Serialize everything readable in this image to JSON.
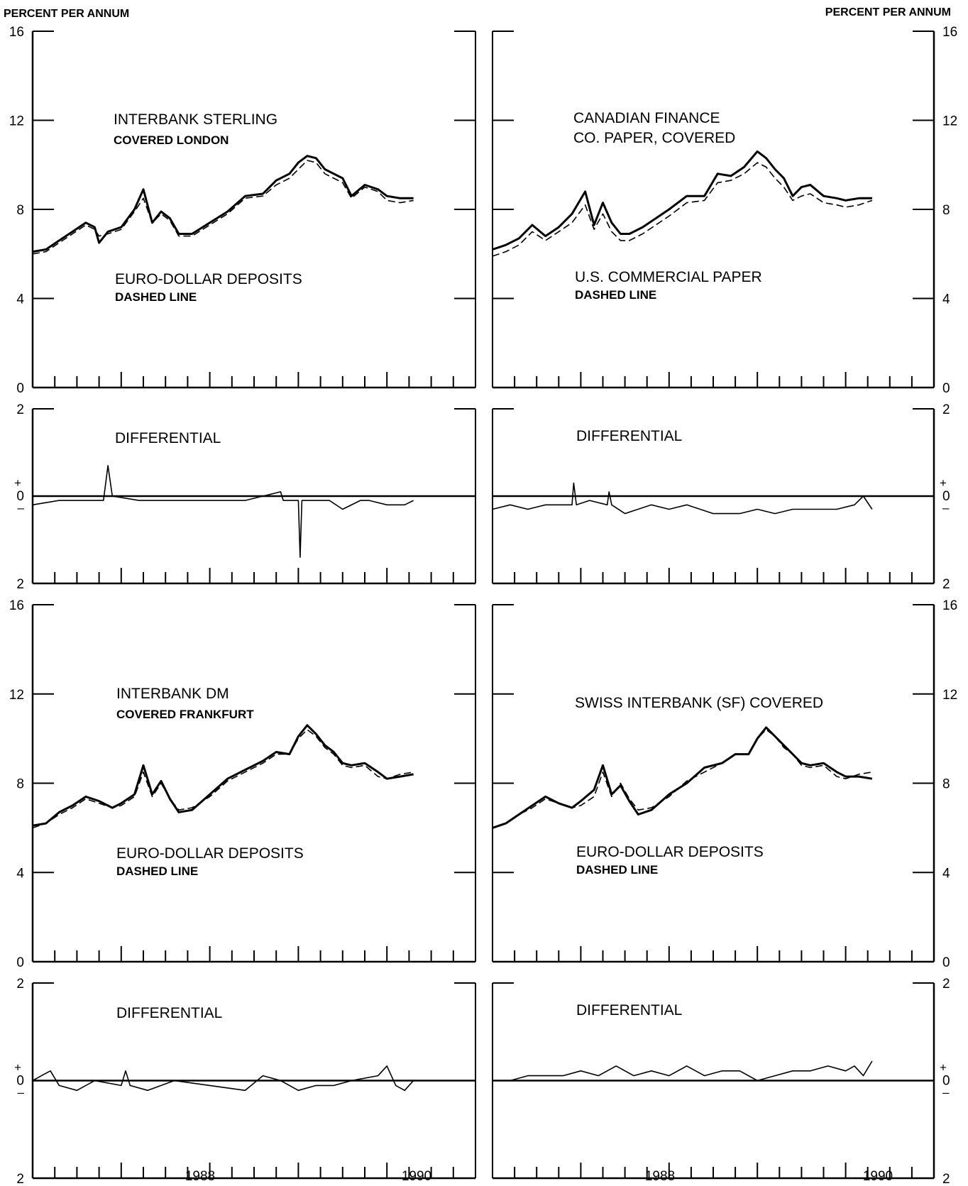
{
  "figure": {
    "left_unit": "PERCENT PER ANNUM",
    "right_unit": "PERCENT PER ANNUM",
    "level_ticks": [
      "0",
      "4",
      "8",
      "12",
      "16"
    ],
    "diff_ticks": [
      "2",
      "0",
      "2"
    ],
    "plus_sign": "+",
    "minus_sign": "–",
    "x_years": [
      "1988",
      "1990"
    ],
    "line_color": "#000000"
  },
  "chart_data": [
    {
      "type": "line",
      "id": "sterling",
      "title": "INTERBANK STERLING",
      "subtitle": "COVERED LONDON",
      "dashed_label": "EURO-DOLLAR DEPOSITS",
      "dashed_sub": "DASHED LINE",
      "ylim": [
        0,
        16
      ],
      "x": [
        1986.0,
        1986.15,
        1986.3,
        1986.45,
        1986.6,
        1986.7,
        1986.75,
        1986.85,
        1987.0,
        1987.15,
        1987.25,
        1987.35,
        1987.45,
        1987.55,
        1987.65,
        1987.8,
        1988.0,
        1988.2,
        1988.4,
        1988.6,
        1988.75,
        1988.9,
        1989.0,
        1989.1,
        1989.2,
        1989.3,
        1989.4,
        1989.5,
        1989.6,
        1989.75,
        1989.9,
        1990.0,
        1990.15,
        1990.3
      ],
      "series": [
        {
          "name": "INTERBANK STERLING",
          "values": [
            6.1,
            6.2,
            6.6,
            7.0,
            7.4,
            7.2,
            6.5,
            7.0,
            7.2,
            8.0,
            8.9,
            7.4,
            7.9,
            7.6,
            6.9,
            6.9,
            7.4,
            7.9,
            8.6,
            8.7,
            9.3,
            9.6,
            10.1,
            10.4,
            10.3,
            9.8,
            9.6,
            9.4,
            8.6,
            9.1,
            8.9,
            8.6,
            8.5,
            8.5
          ],
          "style": "solid"
        },
        {
          "name": "EURO-DOLLAR DEPOSITS",
          "values": [
            6.0,
            6.1,
            6.5,
            6.9,
            7.3,
            7.1,
            6.8,
            6.9,
            7.1,
            7.9,
            8.5,
            7.4,
            7.8,
            7.5,
            6.8,
            6.8,
            7.3,
            7.8,
            8.5,
            8.6,
            9.1,
            9.4,
            9.8,
            10.2,
            10.1,
            9.6,
            9.4,
            9.2,
            8.5,
            9.0,
            8.8,
            8.4,
            8.3,
            8.4
          ],
          "style": "dashed"
        }
      ]
    },
    {
      "type": "line",
      "id": "sterling-diff",
      "title": "DIFFERENTIAL",
      "ylim": [
        -2,
        2
      ],
      "x": [
        1986.0,
        1986.3,
        1986.6,
        1986.8,
        1986.85,
        1986.9,
        1987.2,
        1987.6,
        1988.0,
        1988.4,
        1988.8,
        1988.83,
        1988.95,
        1989.0,
        1989.02,
        1989.04,
        1989.2,
        1989.35,
        1989.5,
        1989.7,
        1989.8,
        1990.0,
        1990.2,
        1990.3
      ],
      "series": [
        {
          "name": "DIFFERENTIAL",
          "values": [
            -0.2,
            -0.1,
            -0.1,
            -0.1,
            0.7,
            0.0,
            -0.1,
            -0.1,
            -0.1,
            -0.1,
            0.1,
            -0.1,
            -0.1,
            -0.1,
            -1.4,
            -0.1,
            -0.1,
            -0.1,
            -0.3,
            -0.1,
            -0.1,
            -0.2,
            -0.2,
            -0.1
          ],
          "style": "solid"
        }
      ]
    },
    {
      "type": "line",
      "id": "dm",
      "title": "INTERBANK DM",
      "subtitle": "COVERED FRANKFURT",
      "dashed_label": "EURO-DOLLAR DEPOSITS",
      "dashed_sub": "DASHED LINE",
      "ylim": [
        0,
        16
      ],
      "x": [
        1986.0,
        1986.15,
        1986.3,
        1986.45,
        1986.6,
        1986.75,
        1986.9,
        1987.0,
        1987.15,
        1987.25,
        1987.35,
        1987.45,
        1987.55,
        1987.65,
        1987.8,
        1988.0,
        1988.2,
        1988.4,
        1988.6,
        1988.75,
        1988.9,
        1989.0,
        1989.1,
        1989.2,
        1989.3,
        1989.4,
        1989.5,
        1989.6,
        1989.75,
        1989.9,
        1990.0,
        1990.15,
        1990.3
      ],
      "series": [
        {
          "name": "INTERBANK DM",
          "values": [
            6.1,
            6.2,
            6.7,
            7.0,
            7.4,
            7.2,
            6.9,
            7.1,
            7.5,
            8.8,
            7.5,
            8.1,
            7.3,
            6.7,
            6.8,
            7.5,
            8.2,
            8.6,
            9.0,
            9.4,
            9.3,
            10.1,
            10.6,
            10.2,
            9.7,
            9.4,
            8.9,
            8.8,
            8.9,
            8.5,
            8.2,
            8.3,
            8.4
          ],
          "style": "solid"
        },
        {
          "name": "EURO-DOLLAR DEPOSITS",
          "values": [
            6.0,
            6.2,
            6.6,
            6.9,
            7.3,
            7.1,
            6.9,
            7.0,
            7.4,
            8.5,
            7.4,
            8.0,
            7.3,
            6.8,
            6.9,
            7.4,
            8.1,
            8.5,
            8.9,
            9.3,
            9.3,
            10.0,
            10.4,
            10.1,
            9.6,
            9.3,
            8.8,
            8.7,
            8.8,
            8.3,
            8.2,
            8.4,
            8.5
          ],
          "style": "dashed"
        }
      ]
    },
    {
      "type": "line",
      "id": "dm-diff",
      "title": "DIFFERENTIAL",
      "ylim": [
        -2,
        2
      ],
      "x": [
        1986.0,
        1986.1,
        1986.2,
        1986.3,
        1986.5,
        1986.7,
        1987.0,
        1987.05,
        1987.1,
        1987.3,
        1987.6,
        1988.0,
        1988.4,
        1988.6,
        1988.8,
        1989.0,
        1989.2,
        1989.4,
        1989.6,
        1989.9,
        1990.0,
        1990.1,
        1990.2,
        1990.3
      ],
      "series": [
        {
          "name": "DIFFERENTIAL",
          "values": [
            0.0,
            0.1,
            0.2,
            -0.1,
            -0.2,
            0.0,
            -0.1,
            0.2,
            -0.1,
            -0.2,
            0.0,
            -0.1,
            -0.2,
            0.1,
            0.0,
            -0.2,
            -0.1,
            -0.1,
            0.0,
            0.1,
            0.3,
            -0.1,
            -0.2,
            0.0
          ],
          "style": "solid"
        }
      ]
    },
    {
      "type": "line",
      "id": "canadian",
      "title": "CANADIAN FINANCE",
      "subtitle": "CO. PAPER, COVERED",
      "dashed_label": "U.S. COMMERCIAL PAPER",
      "dashed_sub": "DASHED LINE",
      "ylim": [
        0,
        16
      ],
      "x": [
        1986.0,
        1986.15,
        1986.3,
        1986.45,
        1986.6,
        1986.75,
        1986.9,
        1987.05,
        1987.15,
        1987.25,
        1987.35,
        1987.45,
        1987.55,
        1987.7,
        1987.85,
        1988.0,
        1988.2,
        1988.4,
        1988.55,
        1988.7,
        1988.85,
        1989.0,
        1989.1,
        1989.2,
        1989.3,
        1989.4,
        1989.5,
        1989.6,
        1989.75,
        1989.9,
        1990.0,
        1990.15,
        1990.3
      ],
      "series": [
        {
          "name": "CANADIAN FINANCE CO. PAPER, COVERED",
          "values": [
            6.2,
            6.4,
            6.7,
            7.3,
            6.8,
            7.2,
            7.8,
            8.8,
            7.3,
            8.3,
            7.4,
            6.9,
            6.9,
            7.2,
            7.6,
            8.0,
            8.6,
            8.6,
            9.6,
            9.5,
            9.9,
            10.6,
            10.3,
            9.8,
            9.4,
            8.6,
            9.0,
            9.1,
            8.6,
            8.5,
            8.4,
            8.5,
            8.5
          ],
          "style": "solid"
        },
        {
          "name": "U.S. COMMERCIAL PAPER",
          "values": [
            5.9,
            6.1,
            6.4,
            7.0,
            6.6,
            7.0,
            7.4,
            8.2,
            7.1,
            7.8,
            7.0,
            6.6,
            6.6,
            6.9,
            7.3,
            7.7,
            8.3,
            8.4,
            9.2,
            9.3,
            9.6,
            10.1,
            9.9,
            9.4,
            9.0,
            8.4,
            8.6,
            8.7,
            8.3,
            8.2,
            8.1,
            8.2,
            8.4
          ],
          "style": "dashed"
        }
      ]
    },
    {
      "type": "line",
      "id": "canadian-diff",
      "title": "DIFFERENTIAL",
      "ylim": [
        -2,
        2
      ],
      "x": [
        1986.0,
        1986.2,
        1986.4,
        1986.6,
        1986.9,
        1986.92,
        1986.95,
        1987.1,
        1987.3,
        1987.32,
        1987.35,
        1987.5,
        1987.8,
        1988.0,
        1988.2,
        1988.5,
        1988.8,
        1989.0,
        1989.2,
        1989.4,
        1989.6,
        1989.9,
        1990.1,
        1990.2,
        1990.3
      ],
      "series": [
        {
          "name": "DIFFERENTIAL",
          "values": [
            -0.3,
            -0.2,
            -0.3,
            -0.2,
            -0.2,
            0.3,
            -0.2,
            -0.1,
            -0.2,
            0.1,
            -0.2,
            -0.4,
            -0.2,
            -0.3,
            -0.2,
            -0.4,
            -0.4,
            -0.3,
            -0.4,
            -0.3,
            -0.3,
            -0.3,
            -0.2,
            0.0,
            -0.3
          ],
          "style": "solid"
        }
      ]
    },
    {
      "type": "line",
      "id": "swiss",
      "title": "SWISS INTERBANK (SF) COVERED",
      "dashed_label": "EURO-DOLLAR DEPOSITS",
      "dashed_sub": "DASHED LINE",
      "ylim": [
        0,
        16
      ],
      "x": [
        1986.0,
        1986.15,
        1986.3,
        1986.45,
        1986.6,
        1986.75,
        1986.9,
        1987.0,
        1987.15,
        1987.25,
        1987.35,
        1987.45,
        1987.55,
        1987.65,
        1987.8,
        1988.0,
        1988.2,
        1988.4,
        1988.6,
        1988.75,
        1988.9,
        1989.0,
        1989.1,
        1989.2,
        1989.3,
        1989.4,
        1989.5,
        1989.6,
        1989.75,
        1989.9,
        1990.0,
        1990.15,
        1990.3
      ],
      "series": [
        {
          "name": "SWISS INTERBANK (SF) COVERED",
          "values": [
            6.0,
            6.2,
            6.6,
            7.0,
            7.4,
            7.1,
            6.9,
            7.2,
            7.7,
            8.8,
            7.5,
            7.9,
            7.2,
            6.6,
            6.8,
            7.5,
            8.0,
            8.7,
            8.9,
            9.3,
            9.3,
            10.0,
            10.5,
            10.1,
            9.7,
            9.3,
            8.9,
            8.8,
            8.9,
            8.5,
            8.3,
            8.3,
            8.2
          ],
          "style": "solid"
        },
        {
          "name": "EURO-DOLLAR DEPOSITS",
          "values": [
            6.0,
            6.2,
            6.6,
            6.9,
            7.3,
            7.1,
            6.9,
            7.0,
            7.4,
            8.5,
            7.4,
            8.0,
            7.3,
            6.8,
            6.9,
            7.4,
            8.1,
            8.5,
            8.9,
            9.3,
            9.3,
            10.0,
            10.4,
            10.1,
            9.6,
            9.3,
            8.8,
            8.7,
            8.8,
            8.3,
            8.2,
            8.4,
            8.5
          ],
          "style": "dashed"
        }
      ]
    },
    {
      "type": "line",
      "id": "swiss-diff",
      "title": "DIFFERENTIAL",
      "ylim": [
        -2,
        2
      ],
      "x": [
        1986.0,
        1986.2,
        1986.4,
        1986.6,
        1986.8,
        1987.0,
        1987.2,
        1987.4,
        1987.6,
        1987.8,
        1988.0,
        1988.2,
        1988.4,
        1988.6,
        1988.8,
        1989.0,
        1989.2,
        1989.4,
        1989.6,
        1989.8,
        1990.0,
        1990.1,
        1990.2,
        1990.3
      ],
      "series": [
        {
          "name": "DIFFERENTIAL",
          "values": [
            0.0,
            0.0,
            0.1,
            0.1,
            0.1,
            0.2,
            0.1,
            0.3,
            0.1,
            0.2,
            0.1,
            0.3,
            0.1,
            0.2,
            0.2,
            0.0,
            0.1,
            0.2,
            0.2,
            0.3,
            0.2,
            0.3,
            0.1,
            0.4
          ],
          "style": "solid"
        }
      ]
    }
  ]
}
